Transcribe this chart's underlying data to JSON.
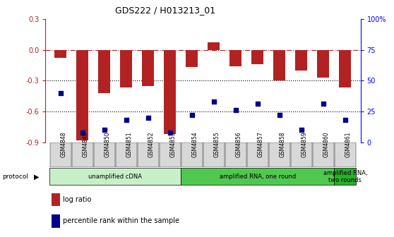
{
  "title": "GDS222 / H013213_01",
  "samples": [
    "GSM4848",
    "GSM4849",
    "GSM4850",
    "GSM4851",
    "GSM4852",
    "GSM4853",
    "GSM4854",
    "GSM4855",
    "GSM4856",
    "GSM4857",
    "GSM4858",
    "GSM4859",
    "GSM4860",
    "GSM4861"
  ],
  "log_ratio": [
    -0.08,
    -0.88,
    -0.42,
    -0.37,
    -0.35,
    -0.82,
    -0.17,
    0.07,
    -0.16,
    -0.14,
    -0.3,
    -0.2,
    -0.27,
    -0.37
  ],
  "percentile_rank": [
    40,
    8,
    10,
    18,
    20,
    8,
    22,
    33,
    26,
    31,
    22,
    10,
    31,
    18
  ],
  "bar_color": "#b22222",
  "dot_color": "#00008b",
  "ylim_left": [
    -0.9,
    0.3
  ],
  "ylim_right": [
    0,
    100
  ],
  "yticks_left": [
    -0.9,
    -0.6,
    -0.3,
    0.0,
    0.3
  ],
  "yticks_right": [
    0,
    25,
    50,
    75,
    100
  ],
  "yticklabels_right": [
    "0",
    "25",
    "50",
    "75",
    "100%"
  ],
  "hline_y": 0.0,
  "dotted_lines": [
    -0.3,
    -0.6
  ],
  "protocol_groups": [
    {
      "label": "unamplified cDNA",
      "start": 0,
      "end": 6,
      "color": "#c8f0c8"
    },
    {
      "label": "amplified RNA, one round",
      "start": 6,
      "end": 13,
      "color": "#50c850"
    },
    {
      "label": "amplified RNA,\ntwo rounds",
      "start": 13,
      "end": 14,
      "color": "#28b028"
    }
  ],
  "bar_width": 0.55,
  "background_color": "#ffffff"
}
